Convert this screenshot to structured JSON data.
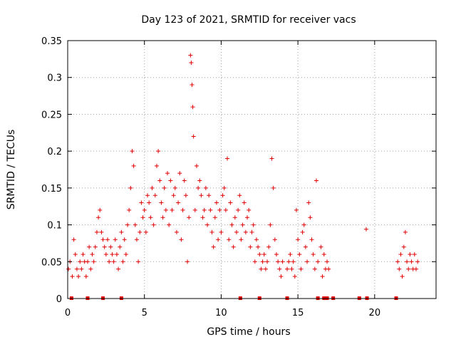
{
  "chart_data": {
    "type": "scatter",
    "title": "Day 123 of 2021, SRMTID for receiver vacs",
    "xlabel": "GPS time / hours",
    "ylabel": "SRMTID / TECUs",
    "xlim": [
      0,
      24
    ],
    "ylim": [
      0,
      0.35
    ],
    "xticks": [
      0,
      5,
      10,
      15,
      20
    ],
    "xtick_labels": [
      "0",
      "5",
      "10",
      "15",
      "20"
    ],
    "yticks": [
      0,
      0.05,
      0.1,
      0.15,
      0.2,
      0.25,
      0.3,
      0.35
    ],
    "ytick_labels": [
      "0",
      "0.05",
      "0.1",
      "0.15",
      "0.2",
      "0.25",
      "0.3",
      "0.35"
    ],
    "grid": true,
    "marker": "+",
    "color": "#e00000",
    "series": [
      {
        "name": "SRMTID",
        "x": [
          0.05,
          0.15,
          0.3,
          0.4,
          0.5,
          0.6,
          0.7,
          0.8,
          0.9,
          1.0,
          1.1,
          1.2,
          1.3,
          1.4,
          1.5,
          1.6,
          1.7,
          1.8,
          1.9,
          2.0,
          2.1,
          2.2,
          2.3,
          2.4,
          2.5,
          2.6,
          2.7,
          2.8,
          2.9,
          3.0,
          3.1,
          3.2,
          3.3,
          3.4,
          3.5,
          3.6,
          3.7,
          3.8,
          3.9,
          4.0,
          4.1,
          4.2,
          4.3,
          4.4,
          4.5,
          4.6,
          4.7,
          4.8,
          4.9,
          5.0,
          5.1,
          5.2,
          5.3,
          5.4,
          5.5,
          5.6,
          5.7,
          5.8,
          5.9,
          6.0,
          6.1,
          6.2,
          6.3,
          6.4,
          6.5,
          6.6,
          6.7,
          6.8,
          6.9,
          7.0,
          7.1,
          7.2,
          7.3,
          7.4,
          7.5,
          7.6,
          7.7,
          7.8,
          7.9,
          8.0,
          8.05,
          8.1,
          8.15,
          8.2,
          8.3,
          8.4,
          8.5,
          8.6,
          8.7,
          8.8,
          8.9,
          9.0,
          9.1,
          9.2,
          9.3,
          9.4,
          9.5,
          9.6,
          9.7,
          9.8,
          9.9,
          10.0,
          10.1,
          10.2,
          10.3,
          10.4,
          10.5,
          10.6,
          10.7,
          10.8,
          10.9,
          11.0,
          11.1,
          11.2,
          11.3,
          11.4,
          11.5,
          11.6,
          11.7,
          11.8,
          11.9,
          12.0,
          12.1,
          12.2,
          12.3,
          12.4,
          12.5,
          12.6,
          12.7,
          12.8,
          12.9,
          13.0,
          13.1,
          13.2,
          13.3,
          13.4,
          13.5,
          13.6,
          13.7,
          13.8,
          13.9,
          14.0,
          14.3,
          14.4,
          14.5,
          14.6,
          14.7,
          14.8,
          14.9,
          15.0,
          15.1,
          15.2,
          15.3,
          15.4,
          15.5,
          15.6,
          15.7,
          15.8,
          15.9,
          16.0,
          16.1,
          16.2,
          16.3,
          16.5,
          16.6,
          16.7,
          16.8,
          16.9,
          17.0,
          19.45,
          21.5,
          21.6,
          21.7,
          21.8,
          21.9,
          22.0,
          22.1,
          22.2,
          22.3,
          22.4,
          22.5,
          22.6,
          22.7,
          22.8
        ],
        "y": [
          0.04,
          0.05,
          0.03,
          0.08,
          0.06,
          0.04,
          0.03,
          0.05,
          0.04,
          0.06,
          0.05,
          0.03,
          0.05,
          0.07,
          0.04,
          0.06,
          0.05,
          0.07,
          0.09,
          0.11,
          0.12,
          0.09,
          0.08,
          0.07,
          0.06,
          0.08,
          0.05,
          0.07,
          0.06,
          0.05,
          0.08,
          0.06,
          0.04,
          0.07,
          0.09,
          0.05,
          0.08,
          0.06,
          0.1,
          0.12,
          0.15,
          0.2,
          0.18,
          0.1,
          0.08,
          0.05,
          0.09,
          0.13,
          0.11,
          0.12,
          0.09,
          0.14,
          0.13,
          0.11,
          0.15,
          0.1,
          0.14,
          0.18,
          0.2,
          0.16,
          0.13,
          0.11,
          0.15,
          0.12,
          0.17,
          0.1,
          0.16,
          0.12,
          0.14,
          0.15,
          0.09,
          0.13,
          0.17,
          0.08,
          0.12,
          0.16,
          0.14,
          0.05,
          0.11,
          0.33,
          0.32,
          0.29,
          0.26,
          0.22,
          0.12,
          0.18,
          0.15,
          0.16,
          0.14,
          0.11,
          0.12,
          0.15,
          0.1,
          0.14,
          0.12,
          0.09,
          0.07,
          0.11,
          0.13,
          0.08,
          0.12,
          0.09,
          0.14,
          0.15,
          0.12,
          0.19,
          0.08,
          0.13,
          0.1,
          0.07,
          0.11,
          0.09,
          0.12,
          0.14,
          0.08,
          0.1,
          0.13,
          0.09,
          0.11,
          0.12,
          0.07,
          0.09,
          0.1,
          0.05,
          0.08,
          0.07,
          0.06,
          0.04,
          0.05,
          0.06,
          0.04,
          0.05,
          0.07,
          0.1,
          0.19,
          0.15,
          0.08,
          0.06,
          0.05,
          0.04,
          0.03,
          0.05,
          0.04,
          0.05,
          0.06,
          0.04,
          0.05,
          0.03,
          0.12,
          0.08,
          0.06,
          0.04,
          0.09,
          0.1,
          0.07,
          0.05,
          0.13,
          0.11,
          0.08,
          0.06,
          0.04,
          0.16,
          0.05,
          0.07,
          0.03,
          0.06,
          0.04,
          0.05,
          0.04,
          0.094,
          0.05,
          0.04,
          0.06,
          0.03,
          0.07,
          0.09,
          0.05,
          0.04,
          0.06,
          0.05,
          0.04,
          0.06,
          0.04,
          0.05
        ]
      }
    ],
    "rug_x": [
      0.25,
      1.3,
      2.3,
      3.5,
      11.25,
      12.5,
      14.3,
      16.3,
      16.7,
      16.9,
      17.3,
      19.0,
      19.5,
      21.4
    ]
  }
}
